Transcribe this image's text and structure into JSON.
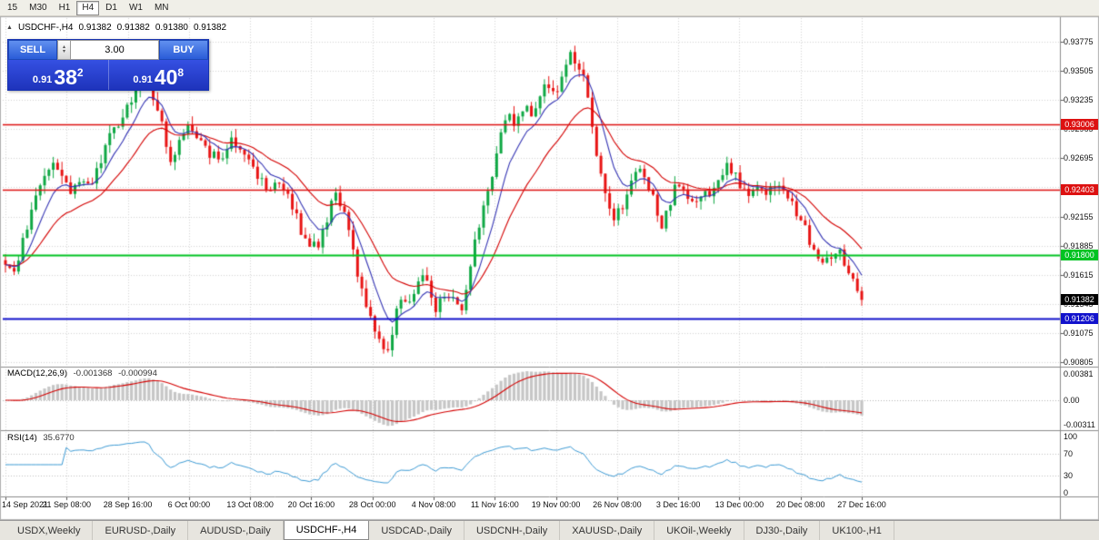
{
  "toolbar": {
    "buttons": [
      "15",
      "M30",
      "H1",
      "H4",
      "D1",
      "W1",
      "MN"
    ],
    "active": "H4"
  },
  "header": {
    "collapse_icon": "▲",
    "symbol": "USDCHF-,H4",
    "open": "0.91382",
    "high": "0.91382",
    "low": "0.91380",
    "close": "0.91382"
  },
  "one_click": {
    "sell_label": "SELL",
    "buy_label": "BUY",
    "volume": "3.00",
    "sell_price": {
      "prefix": "0.91",
      "pips": "38",
      "point": "2"
    },
    "buy_price": {
      "prefix": "0.91",
      "pips": "40",
      "point": "8"
    }
  },
  "price_scale": {
    "decimals": 5,
    "ticks": [
      0.93775,
      0.93505,
      0.93235,
      0.92965,
      0.92695,
      0.92425,
      0.92155,
      0.91885,
      0.91615,
      0.91345,
      0.91075,
      0.90805
    ],
    "tags": [
      {
        "value": 0.93006,
        "color": "#dd1111",
        "text_color": "#ffffff",
        "line": true,
        "line_width": 1.3
      },
      {
        "value": 0.92403,
        "color": "#dd1111",
        "text_color": "#ffffff",
        "line": true,
        "line_width": 1.3
      },
      {
        "value": 0.918,
        "color": "#00c322",
        "text_color": "#ffffff",
        "line": true,
        "line_width": 2
      },
      {
        "value": 0.91382,
        "color": "#000000",
        "text_color": "#ffffff",
        "line": false,
        "line_width": 0
      },
      {
        "value": 0.91206,
        "color": "#1212cc",
        "text_color": "#ffffff",
        "line": true,
        "line_width": 2
      }
    ]
  },
  "macd": {
    "label": "MACD(12,26,9)",
    "value_main": "-0.001368",
    "value_signal": "-0.000994",
    "fast": 12,
    "slow": 26,
    "signal": 9,
    "scale_top": "0.00381",
    "scale_zero": "0.00",
    "scale_bottom": "-0.00311"
  },
  "rsi": {
    "label": "RSI(14)",
    "value": "35.6770",
    "period": 14,
    "scale": [
      100,
      70,
      30,
      0
    ]
  },
  "time_axis": {
    "labels": [
      "14 Sep 2021",
      "21 Sep 08:00",
      "28 Sep 16:00",
      "6 Oct 00:00",
      "13 Oct 08:00",
      "20 Oct 16:00",
      "28 Oct 00:00",
      "4 Nov 08:00",
      "11 Nov 16:00",
      "19 Nov 00:00",
      "26 Nov 08:00",
      "3 Dec 16:00",
      "13 Dec 00:00",
      "20 Dec 08:00",
      "27 Dec 16:00"
    ]
  },
  "tabs": {
    "items": [
      "USDX,Weekly",
      "EURUSD-,Daily",
      "AUDUSD-,Daily",
      "USDCHF-,H4",
      "USDCAD-,Daily",
      "USDCNH-,Daily",
      "XAUUSD-,Daily",
      "UKOil-,Weekly",
      "DJ30-,Daily",
      "UK100-,H1"
    ],
    "active": "USDCHF-,H4"
  },
  "colors": {
    "candle_up": "#0fa844",
    "candle_down": "#e81414",
    "ma_fast": "#3434b4",
    "ma_slow": "#d40000",
    "grid": "#d4d4d4",
    "divider": "#8c8c8c",
    "border": "#b0b0b0",
    "macd_hist": "#c6c6c6",
    "macd_signal": "#d40000",
    "rsi_line": "#3d9bd5",
    "rsi_level": "#c0c0c0"
  },
  "chart_data": {
    "type": "candlestick",
    "symbol": "USDCHF-",
    "timeframe": "H4",
    "bid": 0.91382,
    "ask": 0.91408,
    "visible_high": 0.93775,
    "visible_low": 0.90805,
    "horizontal_lines": [
      {
        "price": 0.93006,
        "color": "red"
      },
      {
        "price": 0.92403,
        "color": "red"
      },
      {
        "price": 0.918,
        "color": "green"
      },
      {
        "price": 0.91206,
        "color": "blue"
      }
    ],
    "price_path": [
      [
        6,
        0.9175
      ],
      [
        12,
        0.916
      ],
      [
        22,
        0.9182
      ],
      [
        32,
        0.921
      ],
      [
        45,
        0.9245
      ],
      [
        58,
        0.9268
      ],
      [
        68,
        0.9252
      ],
      [
        78,
        0.9238
      ],
      [
        88,
        0.9248
      ],
      [
        98,
        0.9242
      ],
      [
        110,
        0.9262
      ],
      [
        122,
        0.9295
      ],
      [
        135,
        0.9305
      ],
      [
        148,
        0.933
      ],
      [
        158,
        0.9348
      ],
      [
        168,
        0.933
      ],
      [
        178,
        0.93
      ],
      [
        188,
        0.9268
      ],
      [
        198,
        0.9288
      ],
      [
        208,
        0.9298
      ],
      [
        218,
        0.9288
      ],
      [
        230,
        0.9272
      ],
      [
        242,
        0.927
      ],
      [
        255,
        0.9288
      ],
      [
        268,
        0.9278
      ],
      [
        280,
        0.9258
      ],
      [
        292,
        0.9242
      ],
      [
        305,
        0.9243
      ],
      [
        318,
        0.9235
      ],
      [
        330,
        0.9205
      ],
      [
        342,
        0.9187
      ],
      [
        352,
        0.9192
      ],
      [
        362,
        0.9218
      ],
      [
        370,
        0.924
      ],
      [
        380,
        0.9212
      ],
      [
        390,
        0.9175
      ],
      [
        400,
        0.914
      ],
      [
        410,
        0.9118
      ],
      [
        420,
        0.9098
      ],
      [
        427,
        0.9088
      ],
      [
        435,
        0.9125
      ],
      [
        443,
        0.914
      ],
      [
        452,
        0.9133
      ],
      [
        460,
        0.9152
      ],
      [
        466,
        0.9168
      ],
      [
        473,
        0.9142
      ],
      [
        481,
        0.9128
      ],
      [
        490,
        0.9148
      ],
      [
        499,
        0.9138
      ],
      [
        507,
        0.9125
      ],
      [
        515,
        0.9155
      ],
      [
        524,
        0.9198
      ],
      [
        533,
        0.9228
      ],
      [
        543,
        0.9252
      ],
      [
        552,
        0.93
      ],
      [
        560,
        0.9315
      ],
      [
        568,
        0.9298
      ],
      [
        576,
        0.9318
      ],
      [
        585,
        0.9308
      ],
      [
        594,
        0.9328
      ],
      [
        603,
        0.9338
      ],
      [
        612,
        0.933
      ],
      [
        620,
        0.9352
      ],
      [
        628,
        0.9368
      ],
      [
        636,
        0.9355
      ],
      [
        644,
        0.9338
      ],
      [
        651,
        0.9302
      ],
      [
        658,
        0.9262
      ],
      [
        666,
        0.9232
      ],
      [
        674,
        0.9215
      ],
      [
        682,
        0.922
      ],
      [
        690,
        0.9238
      ],
      [
        698,
        0.9255
      ],
      [
        706,
        0.9258
      ],
      [
        714,
        0.9242
      ],
      [
        722,
        0.9222
      ],
      [
        729,
        0.9206
      ],
      [
        736,
        0.9225
      ],
      [
        744,
        0.9245
      ],
      [
        752,
        0.9238
      ],
      [
        760,
        0.9225
      ],
      [
        768,
        0.9232
      ],
      [
        776,
        0.9238
      ],
      [
        784,
        0.9238
      ],
      [
        792,
        0.925
      ],
      [
        801,
        0.9265
      ],
      [
        810,
        0.9252
      ],
      [
        818,
        0.924
      ],
      [
        826,
        0.9236
      ],
      [
        834,
        0.924
      ],
      [
        842,
        0.9234
      ],
      [
        850,
        0.9244
      ],
      [
        858,
        0.9248
      ],
      [
        866,
        0.9234
      ],
      [
        874,
        0.9224
      ],
      [
        882,
        0.9212
      ],
      [
        890,
        0.9195
      ],
      [
        898,
        0.9183
      ],
      [
        906,
        0.9176
      ],
      [
        914,
        0.9181
      ],
      [
        922,
        0.9186
      ],
      [
        930,
        0.9172
      ],
      [
        938,
        0.9155
      ],
      [
        948,
        0.9139
      ]
    ]
  }
}
